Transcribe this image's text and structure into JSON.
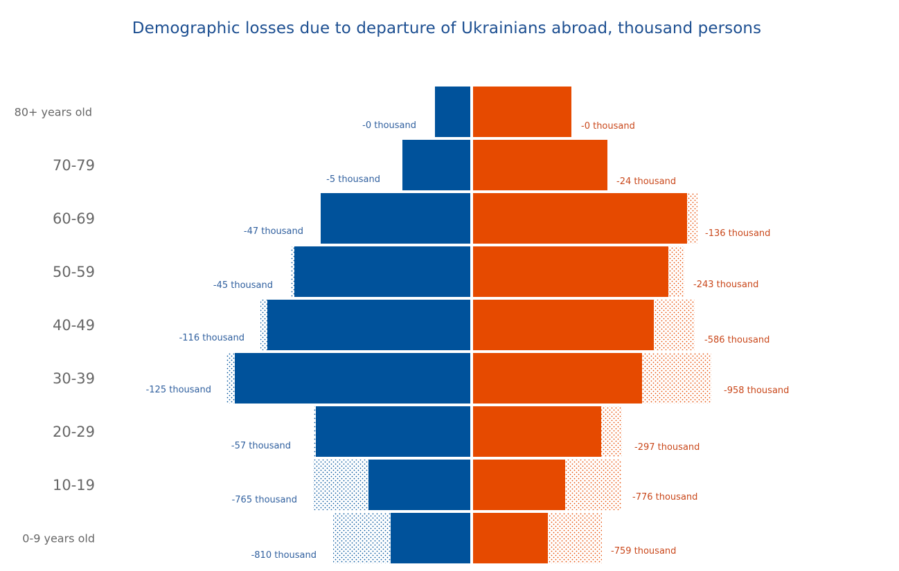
{
  "chart_data": {
    "type": "bar",
    "subtype": "population-pyramid",
    "title": "Demographic losses due to departure of Ukrainians abroad, thousand persons",
    "categories": [
      "80+ years old",
      "70-79",
      "60-69",
      "50-59",
      "40-49",
      "30-39",
      "20-29",
      "10-19",
      "0-9 years old"
    ],
    "value_labels": {
      "left": [
        "-0 thousand",
        "-5 thousand",
        "-47 thousand",
        "-45 thousand",
        "-116 thousand",
        "-125 thousand",
        "-57 thousand",
        "-765 thousand",
        "-810 thousand"
      ],
      "right": [
        "-0 thousand",
        "-24 thousand",
        "-136 thousand",
        "-243 thousand",
        "-586 thousand",
        "-958 thousand",
        "-297 thousand",
        "-776 thousand",
        "-759 thousand"
      ]
    },
    "left_losses": [
      0,
      5,
      47,
      45,
      116,
      125,
      57,
      765,
      810
    ],
    "right_losses": [
      0,
      24,
      136,
      243,
      586,
      958,
      297,
      776,
      759
    ],
    "colors": {
      "left": "#00529b",
      "right": "#e64a00",
      "left_label": "#2f5f9e",
      "right_label": "#c9471a",
      "age_label": "#666666"
    },
    "grid": false
  }
}
